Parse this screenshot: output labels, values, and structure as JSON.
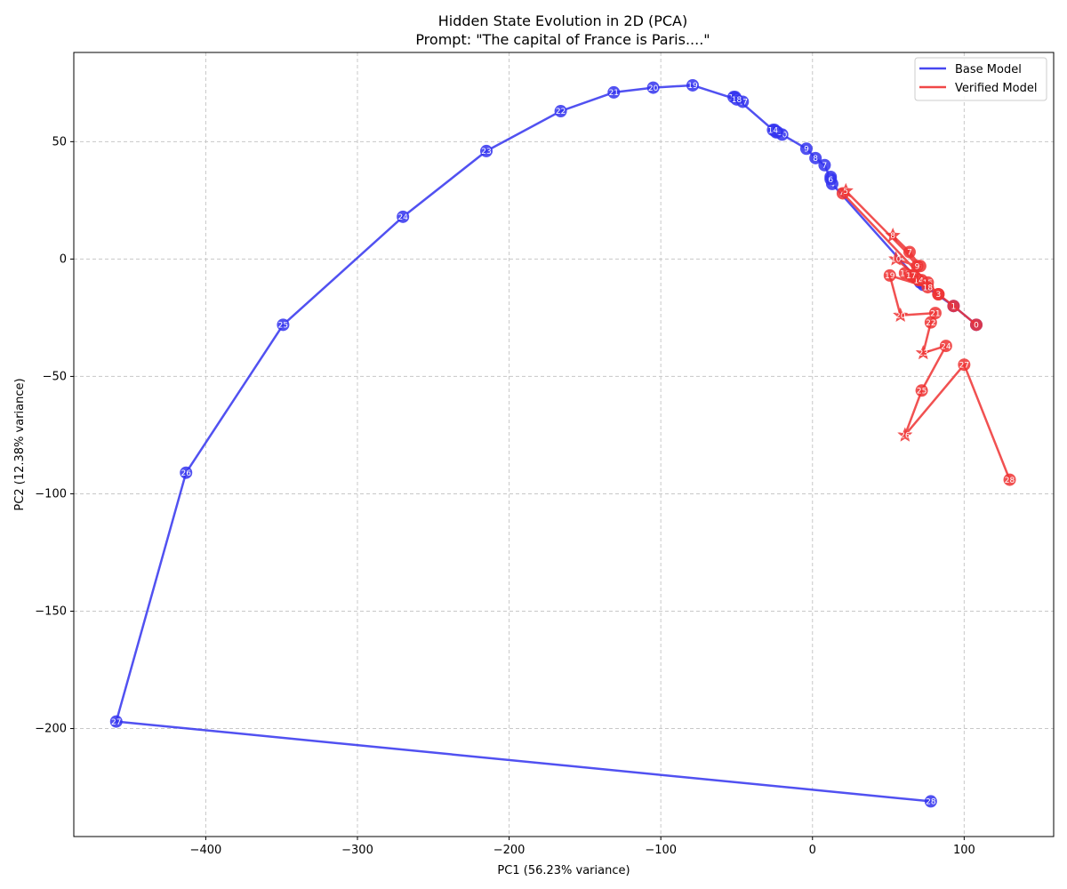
{
  "chart_data": {
    "type": "line",
    "title": "Hidden State Evolution in 2D (PCA)",
    "subtitle": "Prompt: \"The capital of France is Paris....\"",
    "xlabel": "PC1 (56.23% variance)",
    "ylabel": "PC2 (12.38% variance)",
    "xlim": [
      -487,
      159
    ],
    "ylim": [
      -246,
      88
    ],
    "xticks": [
      -400,
      -300,
      -200,
      -100,
      0,
      100
    ],
    "yticks": [
      -200,
      -150,
      -100,
      -50,
      0,
      50
    ],
    "xtick_labels": [
      "−400",
      "−300",
      "−200",
      "−100",
      "0",
      "100"
    ],
    "ytick_labels": [
      "−200",
      "−150",
      "−100",
      "−50",
      "0",
      "50"
    ],
    "grid": true,
    "legend_position": "top-right",
    "series": [
      {
        "name": "Base Model",
        "color": "#3333ee",
        "points": [
          {
            "label": "0",
            "x": 108,
            "y": -28
          },
          {
            "label": "1",
            "x": 93,
            "y": -20
          },
          {
            "label": "2",
            "x": 73,
            "y": -11
          },
          {
            "label": "3",
            "x": 71,
            "y": -10
          },
          {
            "label": "4",
            "x": 13,
            "y": 32
          },
          {
            "label": "5",
            "x": 12,
            "y": 35
          },
          {
            "label": "6",
            "x": 12,
            "y": 34
          },
          {
            "label": "7",
            "x": 8,
            "y": 40
          },
          {
            "label": "8",
            "x": 2,
            "y": 43
          },
          {
            "label": "9",
            "x": -4,
            "y": 47
          },
          {
            "label": "10",
            "x": -20,
            "y": 53
          },
          {
            "label": "11",
            "x": -23,
            "y": 54
          },
          {
            "label": "12",
            "x": -24,
            "y": 54
          },
          {
            "label": "13",
            "x": -25,
            "y": 55
          },
          {
            "label": "14",
            "x": -26,
            "y": 55
          },
          {
            "label": "15",
            "x": -51,
            "y": 69
          },
          {
            "label": "16",
            "x": -52,
            "y": 69
          },
          {
            "label": "17",
            "x": -46,
            "y": 67
          },
          {
            "label": "18",
            "x": -50,
            "y": 68
          },
          {
            "label": "19",
            "x": -79,
            "y": 74
          },
          {
            "label": "20",
            "x": -105,
            "y": 73
          },
          {
            "label": "21",
            "x": -131,
            "y": 71
          },
          {
            "label": "22",
            "x": -166,
            "y": 63
          },
          {
            "label": "23",
            "x": -215,
            "y": 46
          },
          {
            "label": "24",
            "x": -270,
            "y": 18
          },
          {
            "label": "25",
            "x": -349,
            "y": -28
          },
          {
            "label": "26",
            "x": -413,
            "y": -91
          },
          {
            "label": "27",
            "x": -459,
            "y": -197
          },
          {
            "label": "28",
            "x": 78,
            "y": -231
          }
        ]
      },
      {
        "name": "Verified Model",
        "color": "#ee3333",
        "points": [
          {
            "label": "0",
            "x": 108,
            "y": -28,
            "marker": "circle"
          },
          {
            "label": "1",
            "x": 93,
            "y": -20,
            "marker": "circle"
          },
          {
            "label": "2",
            "x": 83,
            "y": -15,
            "marker": "circle"
          },
          {
            "label": "3",
            "x": 83,
            "y": -15,
            "marker": "circle"
          },
          {
            "label": "4",
            "x": 20,
            "y": 28,
            "marker": "circle"
          },
          {
            "label": "5",
            "x": 22,
            "y": 29,
            "marker": "star"
          },
          {
            "label": "6",
            "x": 71,
            "y": -3,
            "marker": "circle"
          },
          {
            "label": "7",
            "x": 64,
            "y": 3,
            "marker": "circle"
          },
          {
            "label": "8",
            "x": 53,
            "y": 10,
            "marker": "star"
          },
          {
            "label": "9",
            "x": 69,
            "y": -3,
            "marker": "circle"
          },
          {
            "label": "10",
            "x": 55,
            "y": 0,
            "marker": "star"
          },
          {
            "label": "11",
            "x": 72,
            "y": -9,
            "marker": "circle"
          },
          {
            "label": "12",
            "x": 68,
            "y": -8,
            "marker": "circle"
          },
          {
            "label": "13",
            "x": 66,
            "y": -7,
            "marker": "circle"
          },
          {
            "label": "14",
            "x": 70,
            "y": -9,
            "marker": "circle"
          },
          {
            "label": "15",
            "x": 76,
            "y": -10,
            "marker": "circle"
          },
          {
            "label": "16",
            "x": 61,
            "y": -6,
            "marker": "circle"
          },
          {
            "label": "17",
            "x": 65,
            "y": -7,
            "marker": "circle"
          },
          {
            "label": "18",
            "x": 76,
            "y": -12,
            "marker": "circle"
          },
          {
            "label": "19",
            "x": 51,
            "y": -7,
            "marker": "circle"
          },
          {
            "label": "20",
            "x": 58,
            "y": -24,
            "marker": "star"
          },
          {
            "label": "21",
            "x": 81,
            "y": -23,
            "marker": "circle"
          },
          {
            "label": "22",
            "x": 78,
            "y": -27,
            "marker": "circle"
          },
          {
            "label": "23",
            "x": 73,
            "y": -40,
            "marker": "star"
          },
          {
            "label": "24",
            "x": 88,
            "y": -37,
            "marker": "circle"
          },
          {
            "label": "25",
            "x": 72,
            "y": -56,
            "marker": "circle"
          },
          {
            "label": "26",
            "x": 61,
            "y": -75,
            "marker": "star"
          },
          {
            "label": "27",
            "x": 100,
            "y": -45,
            "marker": "circle"
          },
          {
            "label": "28",
            "x": 130,
            "y": -94,
            "marker": "circle"
          }
        ]
      }
    ]
  }
}
